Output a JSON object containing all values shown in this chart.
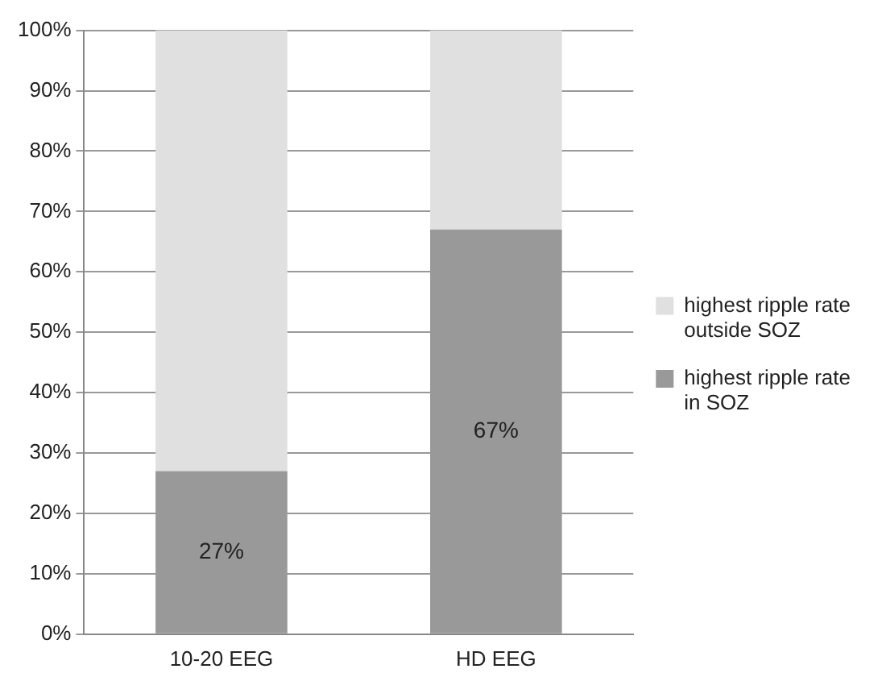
{
  "chart_data": {
    "type": "bar",
    "stacked": true,
    "categories": [
      "10-20 EEG",
      "HD EEG"
    ],
    "series": [
      {
        "name": "highest ripple rate in SOZ",
        "color": "#999999",
        "values": [
          27,
          67
        ],
        "value_labels": [
          "27%",
          "67%"
        ]
      },
      {
        "name": "highest ripple rate outside SOZ",
        "color": "#e0e0e0",
        "values": [
          73,
          33
        ]
      }
    ],
    "ylim": [
      0,
      100
    ],
    "yticks": [
      {
        "value": 0,
        "label": "0%"
      },
      {
        "value": 10,
        "label": "10%"
      },
      {
        "value": 20,
        "label": "20%"
      },
      {
        "value": 30,
        "label": "30%"
      },
      {
        "value": 40,
        "label": "40%"
      },
      {
        "value": 50,
        "label": "50%"
      },
      {
        "value": 60,
        "label": "60%"
      },
      {
        "value": 70,
        "label": "70%"
      },
      {
        "value": 80,
        "label": "80%"
      },
      {
        "value": 90,
        "label": "90%"
      },
      {
        "value": 100,
        "label": "100%"
      }
    ],
    "grid": "y",
    "legend": "right"
  }
}
